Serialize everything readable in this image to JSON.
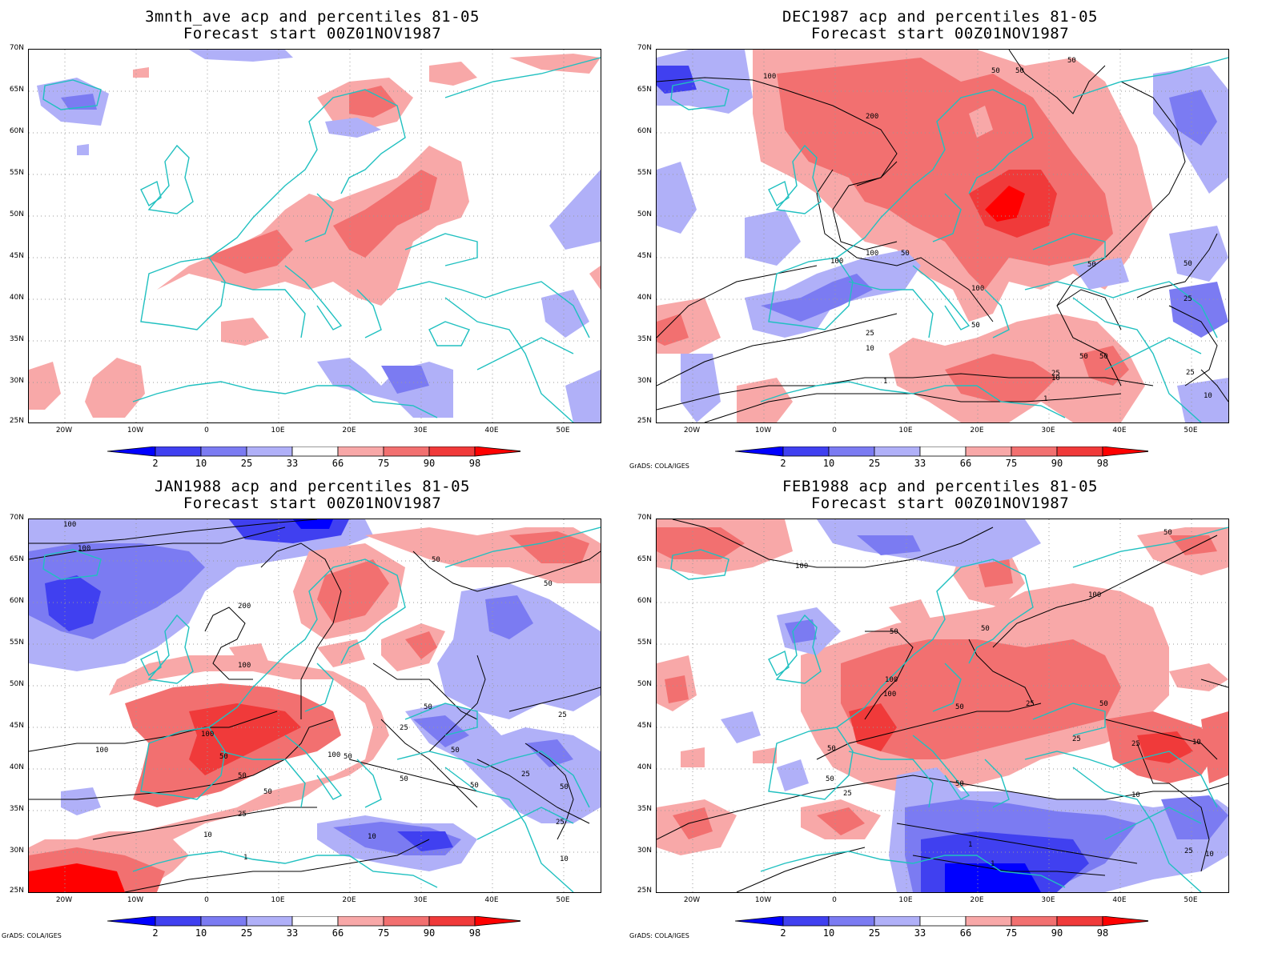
{
  "lat_labels": [
    "70N",
    "65N",
    "60N",
    "55N",
    "50N",
    "45N",
    "40N",
    "35N",
    "30N",
    "25N"
  ],
  "lon_labels": [
    "20W",
    "10W",
    "0",
    "10E",
    "20E",
    "30E",
    "40E",
    "50E"
  ],
  "legend": {
    "labels": [
      "2",
      "10",
      "25",
      "33",
      "66",
      "75",
      "90",
      "98"
    ],
    "colors": [
      "#0000ff",
      "#4040f0",
      "#7b7bf2",
      "#b0b0f8",
      "#ffffff",
      "#f8a8a8",
      "#f27070",
      "#f03a3a",
      "#ff0000"
    ]
  },
  "credit": "GrADS: COLA/IGES",
  "colors": {
    "coast": "#20c0c0",
    "grid": "#999999",
    "contour": "#000000"
  },
  "panels": [
    {
      "title1": "3mnth_ave acp and percentiles 81-05",
      "title2": "Forecast start 00Z01NOV1987",
      "show_credit": false,
      "contour_labels": []
    },
    {
      "title1": "DEC1987 acp and percentiles 81-05",
      "title2": "Forecast start 00Z01NOV1987",
      "show_credit": true,
      "contour_labels": [
        "100",
        "200",
        "50",
        "50",
        "50",
        "100",
        "100",
        "50",
        "100",
        "50",
        "25",
        "10",
        "1",
        "50",
        "25",
        "10",
        "50",
        "25",
        "50",
        "1",
        "10",
        "25",
        "50"
      ]
    },
    {
      "title1": "JAN1988 acp and percentiles 81-05",
      "title2": "Forecast start 00Z01NOV1987",
      "show_credit": true,
      "contour_labels": [
        "100",
        "100",
        "200",
        "100",
        "50",
        "50",
        "100",
        "100",
        "50",
        "50",
        "100",
        "50",
        "25",
        "10",
        "1",
        "50",
        "50",
        "25",
        "50",
        "50",
        "10",
        "25",
        "50",
        "25",
        "10",
        "25",
        "50"
      ]
    },
    {
      "title1": "FEB1988 acp and percentiles 81-05",
      "title2": "Forecast start 00Z01NOV1987",
      "show_credit": true,
      "contour_labels": [
        "100",
        "100",
        "50",
        "50",
        "100",
        "50",
        "100",
        "50",
        "50",
        "25",
        "25",
        "50",
        "50",
        "50",
        "25",
        "10",
        "10",
        "1",
        "1",
        "25",
        "10",
        "25"
      ]
    }
  ]
}
